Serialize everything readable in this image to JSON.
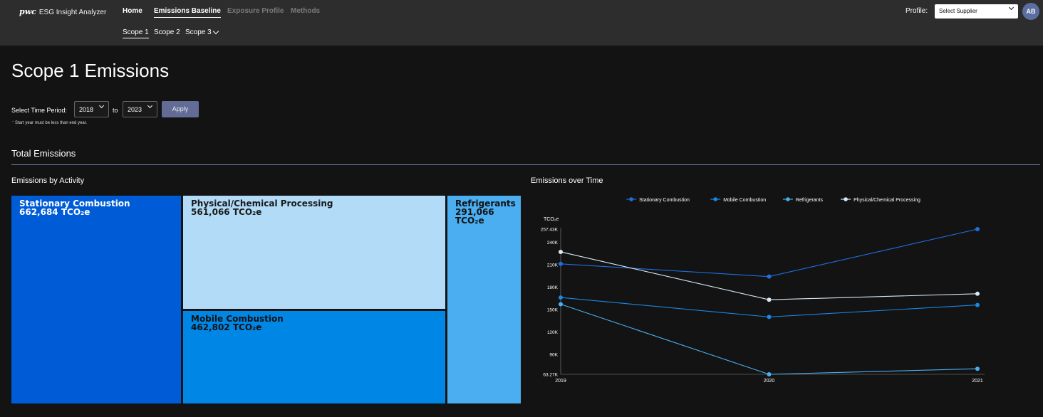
{
  "header": {
    "brand_logo": "pwc",
    "brand_name": "ESG Insight Analyzer",
    "nav": {
      "home": "Home",
      "emissions_baseline": "Emissions Baseline",
      "exposure_profile": "Exposure Profile",
      "methods": "Methods"
    },
    "subnav": {
      "scope1": "Scope 1",
      "scope2": "Scope 2",
      "scope3": "Scope 3"
    },
    "profile_label": "Profile:",
    "supplier_select": "Select Supplier",
    "avatar": "AB"
  },
  "page": {
    "title": "Scope 1 Emissions",
    "period_label": "Select Time Period:",
    "start_year": "2018",
    "to_label": "to",
    "end_year": "2023",
    "apply_label": "Apply",
    "hint_asterisk": "*",
    "hint": "Start year must be less than end year.",
    "section_title": "Total Emissions",
    "treemap_title": "Emissions by Activity",
    "line_title": "Emissions over Time"
  },
  "treemap": {
    "stationary": {
      "label": "Stationary Combustion",
      "value": "662,684 TCO₂e"
    },
    "physical": {
      "label": "Physical/Chemical Processing",
      "value": "561,066 TCO₂e"
    },
    "mobile": {
      "label": "Mobile Combustion",
      "value": "462,802 TCO₂e"
    },
    "refrigerants": {
      "label": "Refrigerants",
      "value": "291,066 TCO₂e"
    }
  },
  "chart_data": {
    "type": "line",
    "ylabel": "TCO₂e",
    "x": [
      "2019",
      "2020",
      "2021"
    ],
    "y_ticks": [
      "257.43K",
      "240K",
      "210K",
      "180K",
      "150K",
      "120K",
      "90K",
      "63.27K"
    ],
    "y_tick_values": [
      257430,
      240000,
      210000,
      180000,
      150000,
      120000,
      90000,
      63270
    ],
    "ylim": [
      63270,
      257430
    ],
    "legend_position": "top-center",
    "grid": false,
    "series": [
      {
        "name": "Stationary Combustion",
        "color": "#1f6fe0",
        "values": [
          211000,
          194000,
          257430
        ]
      },
      {
        "name": "Mobile Combustion",
        "color": "#1a86e6",
        "values": [
          166000,
          140000,
          156000
        ]
      },
      {
        "name": "Refrigerants",
        "color": "#4aaef0",
        "values": [
          157000,
          63270,
          70700
        ]
      },
      {
        "name": "Physical/Chemical Processing",
        "color": "#d8e8f6",
        "values": [
          227000,
          163000,
          171000
        ]
      }
    ]
  }
}
